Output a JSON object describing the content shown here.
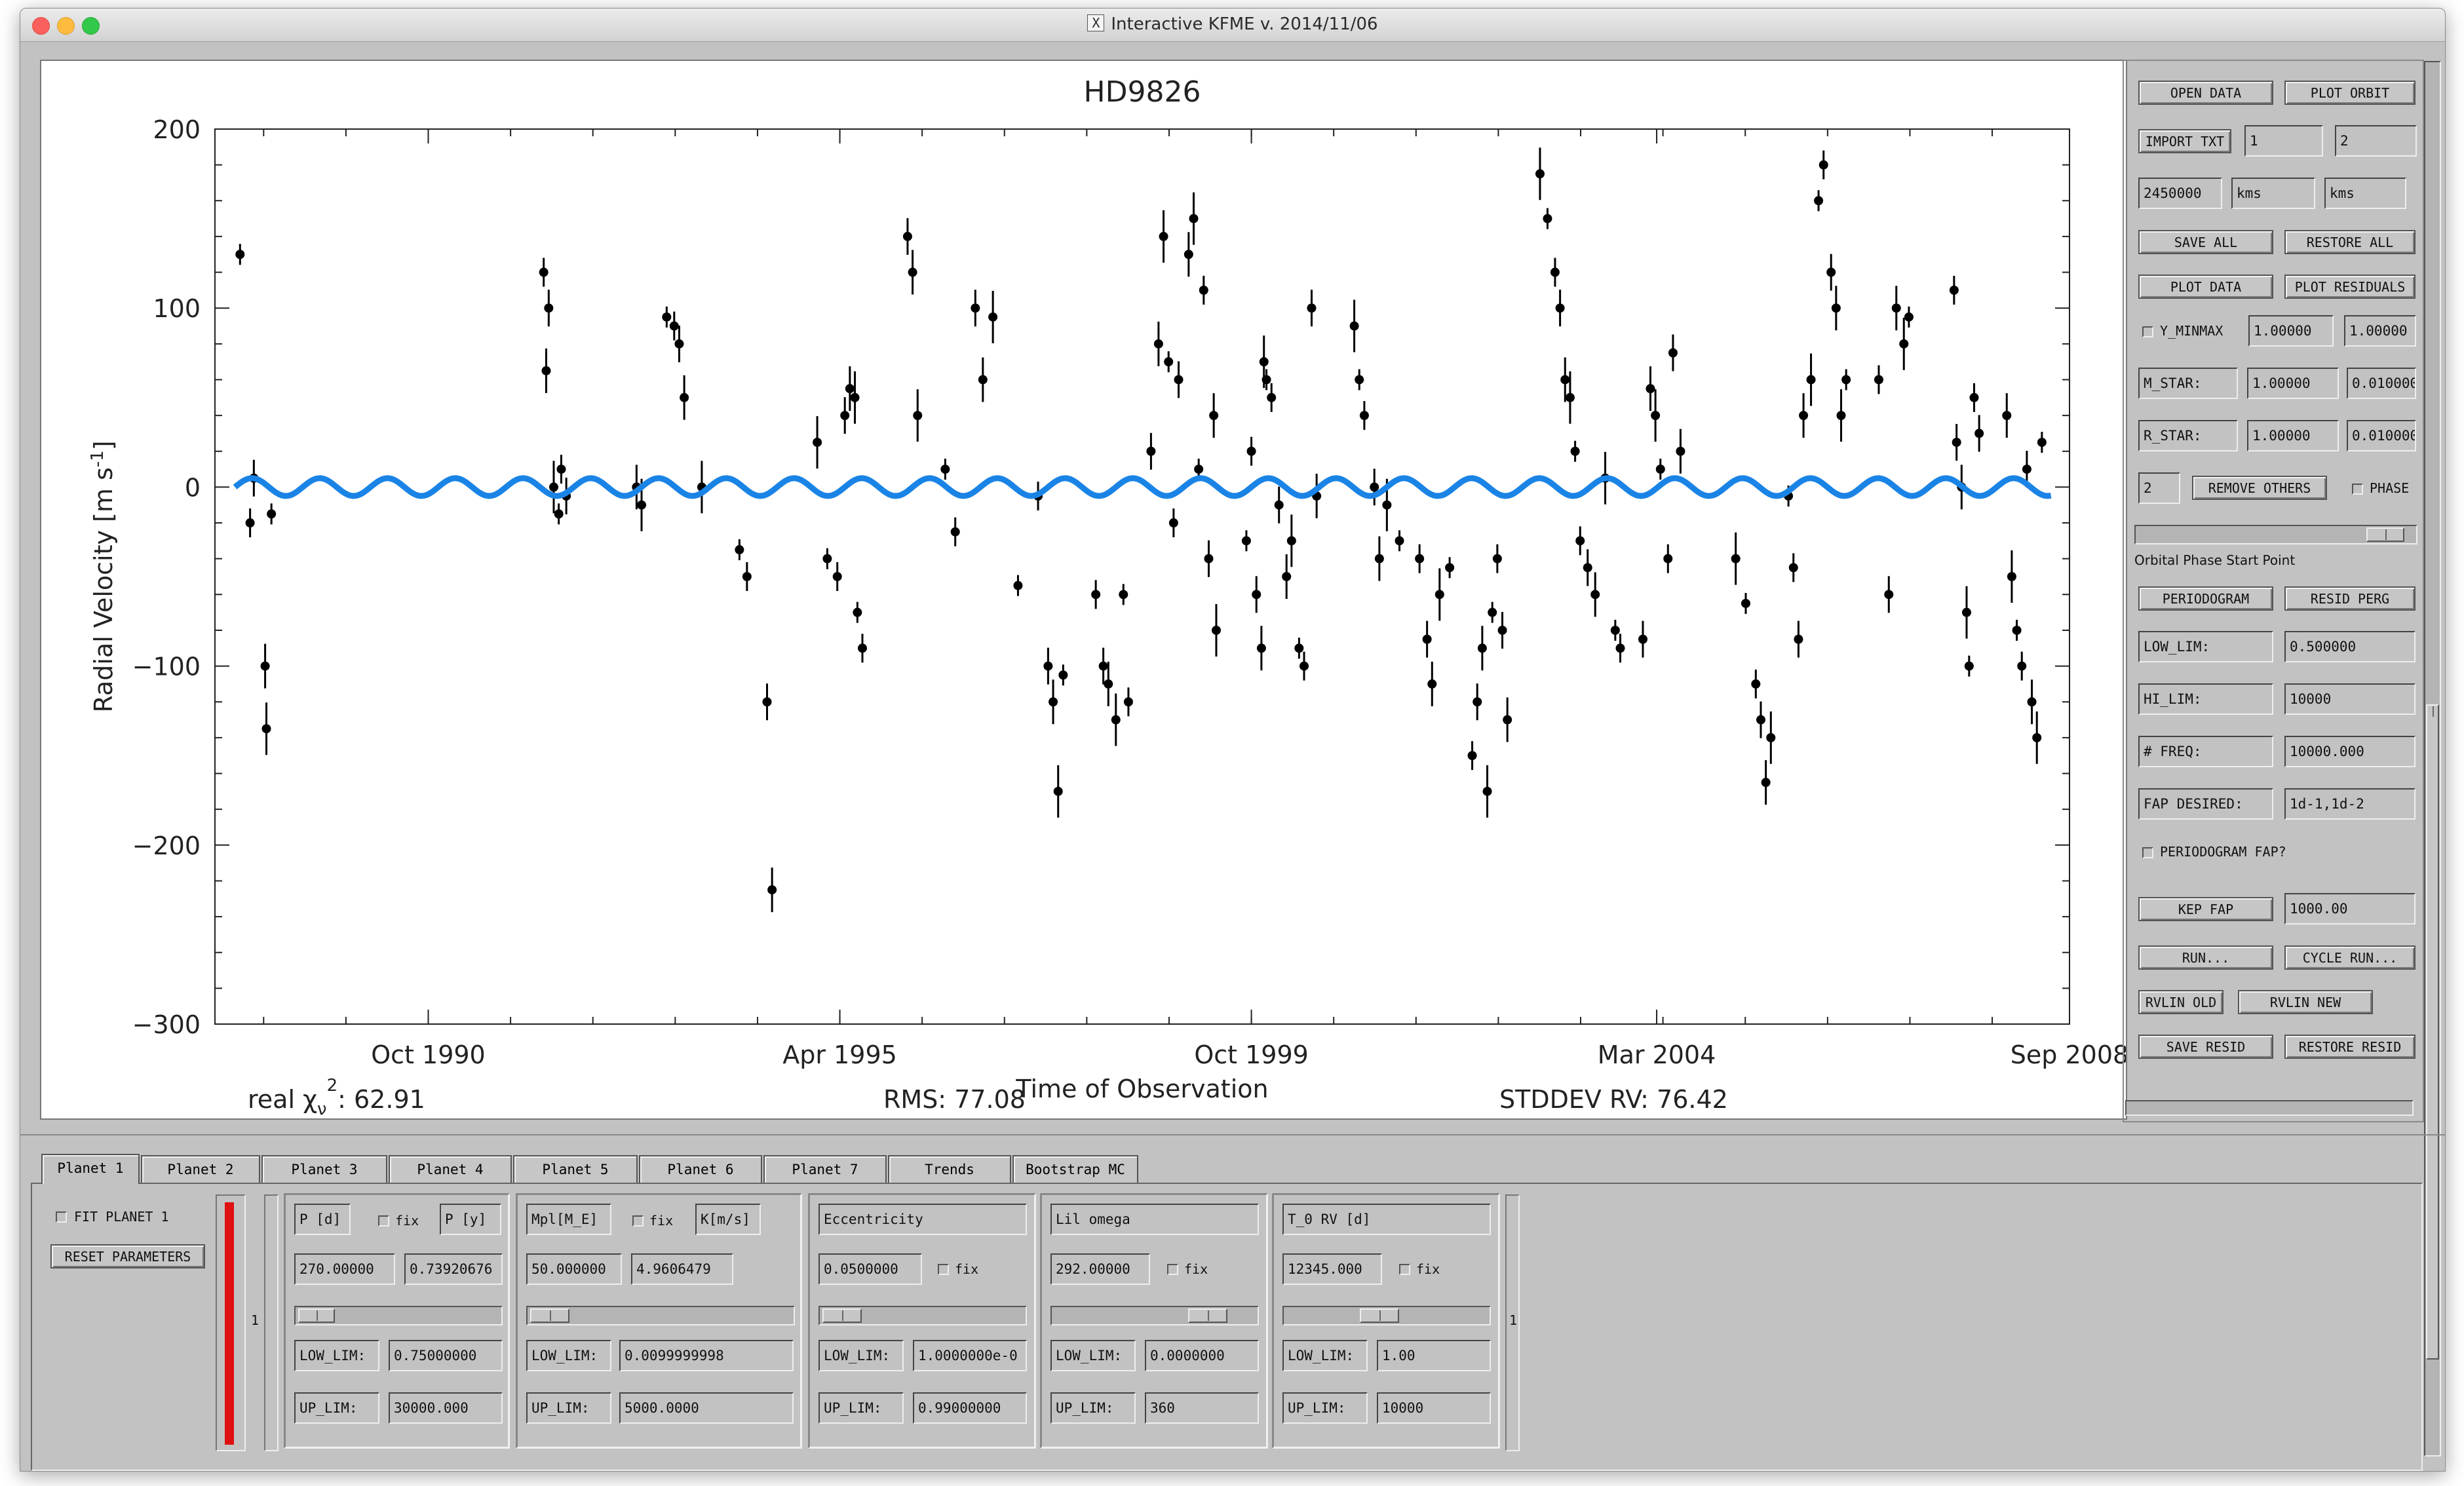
{
  "window": {
    "title": "Interactive KFME v. 2014/11/06",
    "title_icon": "X"
  },
  "plot": {
    "title": "HD9826",
    "footer": {
      "chi2_label": "real χ",
      "chi2_sub": "ν",
      "chi2_sup": "2",
      "chi2_value": ": 62.91",
      "rms": "RMS: 77.08",
      "stddev": "STDDEV RV: 76.42"
    }
  },
  "chart_data": {
    "type": "scatter",
    "title": "HD9826",
    "xlabel": "Time of Observation",
    "ylabel_main": "Radial Velocity [m s",
    "ylabel_sup": "-1",
    "ylabel_end": "]",
    "ylim": [
      -300,
      200
    ],
    "xlim_jd": [
      2447320,
      2454710
    ],
    "y_ticks": [
      "200",
      "100",
      "0",
      "−100",
      "−200",
      "−300"
    ],
    "x_ticks": [
      {
        "label": "Oct 1990",
        "jd": 2448170
      },
      {
        "label": "Apr 1995",
        "jd": 2449810
      },
      {
        "label": "Oct 1999",
        "jd": 2451450
      },
      {
        "label": "Mar 2004",
        "jd": 2453065
      },
      {
        "label": "Sep 2008",
        "jd": 2454710
      }
    ],
    "model": {
      "name": "Keplerian model",
      "period_days": 270.0,
      "semi_amplitude": 4.96,
      "color": "#1a84e6"
    },
    "point_color": "#000000",
    "series": [
      {
        "kind": "data",
        "points": [
          [
            2447420,
            130
          ],
          [
            2447460,
            -20
          ],
          [
            2447475,
            5
          ],
          [
            2447520,
            -100
          ],
          [
            2447525,
            -135
          ],
          [
            2447545,
            -15
          ],
          [
            2448630,
            120
          ],
          [
            2448650,
            100
          ],
          [
            2448640,
            65
          ],
          [
            2448670,
            0
          ],
          [
            2448690,
            -15
          ],
          [
            2448700,
            10
          ],
          [
            2448720,
            -5
          ],
          [
            2449000,
            0
          ],
          [
            2449020,
            -10
          ],
          [
            2449120,
            95
          ],
          [
            2449150,
            90
          ],
          [
            2449170,
            80
          ],
          [
            2449190,
            50
          ],
          [
            2449260,
            0
          ],
          [
            2449410,
            -35
          ],
          [
            2449440,
            -50
          ],
          [
            2449520,
            -120
          ],
          [
            2449540,
            -225
          ],
          [
            2449720,
            25
          ],
          [
            2449760,
            -40
          ],
          [
            2449800,
            -50
          ],
          [
            2449830,
            40
          ],
          [
            2449850,
            55
          ],
          [
            2449870,
            50
          ],
          [
            2449880,
            -70
          ],
          [
            2449900,
            -90
          ],
          [
            2450080,
            140
          ],
          [
            2450100,
            120
          ],
          [
            2450120,
            40
          ],
          [
            2450230,
            10
          ],
          [
            2450270,
            -25
          ],
          [
            2450350,
            100
          ],
          [
            2450380,
            60
          ],
          [
            2450420,
            95
          ],
          [
            2450520,
            -55
          ],
          [
            2450600,
            -5
          ],
          [
            2450640,
            -100
          ],
          [
            2450660,
            -120
          ],
          [
            2450680,
            -170
          ],
          [
            2450700,
            -105
          ],
          [
            2450830,
            -60
          ],
          [
            2450860,
            -100
          ],
          [
            2450880,
            -110
          ],
          [
            2450910,
            -130
          ],
          [
            2450940,
            -60
          ],
          [
            2450960,
            -120
          ],
          [
            2451050,
            20
          ],
          [
            2451080,
            80
          ],
          [
            2451100,
            140
          ],
          [
            2451120,
            70
          ],
          [
            2451140,
            -20
          ],
          [
            2451160,
            60
          ],
          [
            2451200,
            130
          ],
          [
            2451220,
            150
          ],
          [
            2451240,
            10
          ],
          [
            2451260,
            110
          ],
          [
            2451280,
            -40
          ],
          [
            2451300,
            40
          ],
          [
            2451310,
            -80
          ],
          [
            2451430,
            -30
          ],
          [
            2451450,
            20
          ],
          [
            2451470,
            -60
          ],
          [
            2451490,
            -90
          ],
          [
            2451500,
            70
          ],
          [
            2451510,
            60
          ],
          [
            2451530,
            50
          ],
          [
            2451560,
            -10
          ],
          [
            2451590,
            -50
          ],
          [
            2451610,
            -30
          ],
          [
            2451640,
            -90
          ],
          [
            2451660,
            -100
          ],
          [
            2451690,
            100
          ],
          [
            2451710,
            -5
          ],
          [
            2451860,
            90
          ],
          [
            2451880,
            60
          ],
          [
            2451900,
            40
          ],
          [
            2451940,
            0
          ],
          [
            2451960,
            -40
          ],
          [
            2451990,
            -10
          ],
          [
            2452040,
            -30
          ],
          [
            2452120,
            -40
          ],
          [
            2452150,
            -85
          ],
          [
            2452170,
            -110
          ],
          [
            2452200,
            -60
          ],
          [
            2452240,
            -45
          ],
          [
            2452330,
            -150
          ],
          [
            2452350,
            -120
          ],
          [
            2452370,
            -90
          ],
          [
            2452390,
            -170
          ],
          [
            2452410,
            -70
          ],
          [
            2452430,
            -40
          ],
          [
            2452450,
            -80
          ],
          [
            2452470,
            -130
          ],
          [
            2452600,
            175
          ],
          [
            2452630,
            150
          ],
          [
            2452660,
            120
          ],
          [
            2452680,
            100
          ],
          [
            2452700,
            60
          ],
          [
            2452720,
            50
          ],
          [
            2452740,
            20
          ],
          [
            2452760,
            -30
          ],
          [
            2452790,
            -45
          ],
          [
            2452820,
            -60
          ],
          [
            2452860,
            5
          ],
          [
            2452900,
            -80
          ],
          [
            2452920,
            -90
          ],
          [
            2453010,
            -85
          ],
          [
            2453040,
            55
          ],
          [
            2453060,
            40
          ],
          [
            2453080,
            10
          ],
          [
            2453110,
            -40
          ],
          [
            2453130,
            75
          ],
          [
            2453160,
            20
          ],
          [
            2453380,
            -40
          ],
          [
            2453420,
            -65
          ],
          [
            2453460,
            -110
          ],
          [
            2453480,
            -130
          ],
          [
            2453500,
            -165
          ],
          [
            2453520,
            -140
          ],
          [
            2453590,
            -5
          ],
          [
            2453610,
            -45
          ],
          [
            2453630,
            -85
          ],
          [
            2453650,
            40
          ],
          [
            2453680,
            60
          ],
          [
            2453710,
            160
          ],
          [
            2453730,
            180
          ],
          [
            2453760,
            120
          ],
          [
            2453780,
            100
          ],
          [
            2453800,
            40
          ],
          [
            2453820,
            60
          ],
          [
            2453950,
            60
          ],
          [
            2453990,
            -60
          ],
          [
            2454020,
            100
          ],
          [
            2454050,
            80
          ],
          [
            2454070,
            95
          ],
          [
            2454250,
            110
          ],
          [
            2454260,
            25
          ],
          [
            2454280,
            0
          ],
          [
            2454300,
            -70
          ],
          [
            2454310,
            -100
          ],
          [
            2454330,
            50
          ],
          [
            2454350,
            30
          ],
          [
            2454460,
            40
          ],
          [
            2454480,
            -50
          ],
          [
            2454500,
            -80
          ],
          [
            2454520,
            -100
          ],
          [
            2454540,
            10
          ],
          [
            2454560,
            -120
          ],
          [
            2454580,
            -140
          ],
          [
            2454600,
            25
          ]
        ]
      }
    ]
  },
  "right_panel": {
    "open_data": "OPEN DATA",
    "plot_orbit": "PLOT ORBIT",
    "import_txt": "IMPORT TXT",
    "import_col1": "1",
    "import_col2": "2",
    "jd_offset": "2450000",
    "unit1": "kms",
    "unit2": "kms",
    "save_all": "SAVE ALL",
    "restore_all": "RESTORE ALL",
    "plot_data": "PLOT DATA",
    "plot_residuals": "PLOT RESIDUALS",
    "y_minmax": "Y_MINMAX",
    "y_min": "1.00000",
    "y_max": "1.00000",
    "m_star_label": "M_STAR:",
    "m_star": "1.00000",
    "m_star_err": "0.0100000",
    "r_star_label": "R_STAR:",
    "r_star": "1.00000",
    "r_star_err": "0.0100000",
    "remove_count": "2",
    "remove_others": "REMOVE OTHERS",
    "phase": "PHASE",
    "phase_start": "Orbital Phase Start Point",
    "periodogram": "PERIODOGRAM",
    "resid_perg": "RESID PERG",
    "low_lim_label": "LOW_LIM:",
    "low_lim": "0.500000",
    "hi_lim_label": "HI_LIM:",
    "hi_lim": "10000",
    "nfreq_label": "# FREQ:",
    "nfreq": "10000.000",
    "fap_desired_label": "FAP DESIRED:",
    "fap_desired": "1d-1,1d-2",
    "periodogram_fap": "PERIODOGRAM FAP?",
    "kep_fap": "KEP FAP",
    "kep_fap_value": "1000.00",
    "run": "RUN...",
    "cycle_run": "CYCLE RUN...",
    "rvlin_old": "RVLIN OLD",
    "rvlin_new": "RVLIN NEW",
    "save_resid": "SAVE RESID",
    "restore_resid": "RESTORE RESID"
  },
  "tabs": [
    "Planet 1",
    "Planet 2",
    "Planet 3",
    "Planet 4",
    "Planet 5",
    "Planet 6",
    "Planet 7",
    "Trends",
    "Bootstrap MC"
  ],
  "planet_panel": {
    "fit_planet": "FIT PLANET 1",
    "reset": "RESET PARAMETERS",
    "index_left": "1",
    "index_right": "1",
    "fix": "fix",
    "period": {
      "label1": "P [d]",
      "label2": "P [y]",
      "value1": "270.00000",
      "value2": "0.73920676",
      "low_label": "LOW_LIM:",
      "low": "0.75000000",
      "up_label": "UP_LIM:",
      "up": "30000.000"
    },
    "mass": {
      "label1": "Mpl[M_E]",
      "label2": "K[m/s]",
      "value1": "50.000000",
      "value2": "4.9606479",
      "low_label": "LOW_LIM:",
      "low": "0.0099999998",
      "up_label": "UP_LIM:",
      "up": "5000.0000"
    },
    "ecc": {
      "label": "Eccentricity",
      "value": "0.0500000",
      "low_label": "LOW_LIM:",
      "low": "1.0000000e-0",
      "up_label": "UP_LIM:",
      "up": "0.99000000"
    },
    "omega": {
      "label": "Lil omega",
      "value": "292.00000",
      "low_label": "LOW_LIM:",
      "low": "0.0000000",
      "up_label": "UP_LIM:",
      "up": "360"
    },
    "t0": {
      "label": "T_0 RV [d]",
      "value": "12345.000",
      "low_label": "LOW_LIM:",
      "low": "1.00",
      "up_label": "UP_LIM:",
      "up": "10000"
    }
  }
}
